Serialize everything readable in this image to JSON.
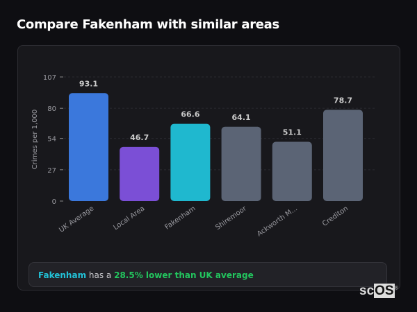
{
  "title": "Compare Fakenham with similar areas",
  "chart_data": {
    "type": "bar",
    "ylabel": "Crimes per 1,000",
    "ylim": [
      0,
      107
    ],
    "yticks": [
      0,
      27,
      54,
      80,
      107
    ],
    "grid": true,
    "categories": [
      "UK Average",
      "Local Area",
      "Fakenham",
      "Shiremoor",
      "Ackworth M...",
      "Crediton"
    ],
    "values": [
      93.1,
      46.7,
      66.6,
      64.1,
      51.1,
      78.7
    ],
    "colors": [
      "#3b78dc",
      "#7b4fd6",
      "#1fb8cf",
      "#5b6475",
      "#5b6475",
      "#5b6475"
    ]
  },
  "info": {
    "area": "Fakenham",
    "middle": " has a ",
    "comparison": "28.5% lower than UK average",
    "area_color": "#22c1d6",
    "comparison_color": "#22c55e"
  },
  "logo": {
    "text_a": "sc",
    "text_b": "OS",
    "mark": "®"
  }
}
